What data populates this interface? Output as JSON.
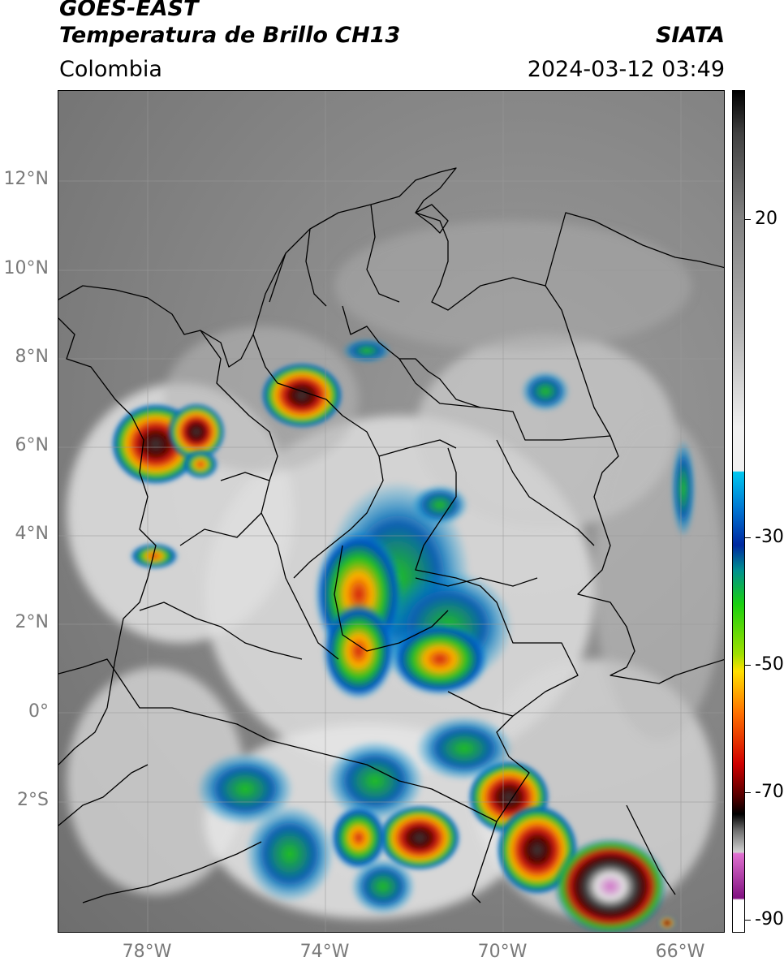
{
  "header": {
    "title_line1": "GOES-EAST",
    "title_line2": "Temperatura de Brillo CH13",
    "region": "Colombia",
    "agency": "SIATA",
    "timestamp": "2024-03-12 03:49"
  },
  "map": {
    "lat_labels": [
      "12°N",
      "10°N",
      "8°N",
      "6°N",
      "4°N",
      "2°N",
      "0°",
      "2°S"
    ],
    "lon_labels": [
      "78°W",
      "74°W",
      "70°W",
      "66°W"
    ],
    "lat_range": [
      -4.8,
      14.2
    ],
    "lon_range": [
      -80.0,
      -65.0
    ],
    "grid": true,
    "imagery_colors": {
      "warm_clouds": "#8a8a8a",
      "cold_cirrus": "#e8e8e8",
      "deep_convection_green": "#22c01e",
      "deep_convection_red": "#d01d10",
      "overshoot_core": "#4a4a4a",
      "coldest": "#d070c8"
    }
  },
  "colorbar": {
    "tick_labels": [
      "20",
      "-30",
      "-50",
      "-70",
      "-90"
    ],
    "tick_values": [
      20,
      -30,
      -50,
      -70,
      -90
    ],
    "range": [
      37,
      -92
    ],
    "colors": {
      "top": "#000000",
      "gray_light": "#f0f0f0",
      "cyan": "#00c8f0",
      "blue": "#0028a0",
      "green": "#18d010",
      "yellow": "#ffe000",
      "orange": "#ff7000",
      "red": "#d00000",
      "dark_red": "#500000",
      "magenta": "#e070d0",
      "purple": "#801080"
    }
  }
}
